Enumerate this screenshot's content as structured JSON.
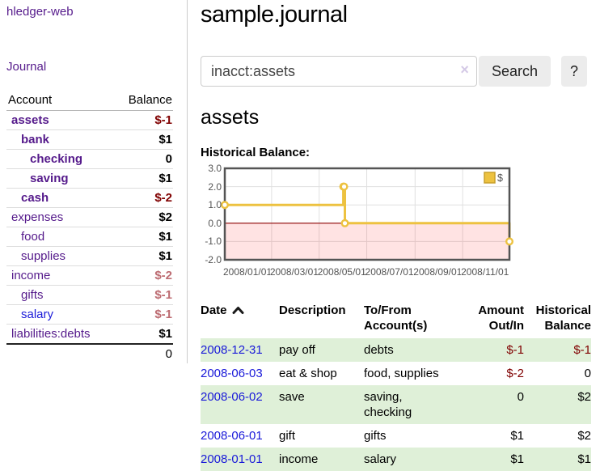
{
  "app": {
    "title": "hledger-web",
    "nav_journal": "Journal"
  },
  "sidebar": {
    "account_header": "Account",
    "balance_header": "Balance",
    "rows": [
      {
        "account": "assets",
        "balance": "$-1"
      },
      {
        "account": "bank",
        "balance": "$1"
      },
      {
        "account": "checking",
        "balance": "0"
      },
      {
        "account": "saving",
        "balance": "$1"
      },
      {
        "account": "cash",
        "balance": "$-2"
      },
      {
        "account": "expenses",
        "balance": "$2"
      },
      {
        "account": "food",
        "balance": "$1"
      },
      {
        "account": "supplies",
        "balance": "$1"
      },
      {
        "account": "income",
        "balance": "$-2"
      },
      {
        "account": "gifts",
        "balance": "$-1"
      },
      {
        "account": "salary",
        "balance": "$-1"
      },
      {
        "account": "liabilities:debts",
        "balance": "$1"
      }
    ],
    "total": "0"
  },
  "header": {
    "title": "sample.journal"
  },
  "search": {
    "value": "inacct:assets",
    "clear_icon": "×",
    "button": "Search",
    "help_button": "?"
  },
  "main": {
    "heading": "assets",
    "chart_label": "Historical Balance:"
  },
  "chart_data": {
    "type": "line",
    "step": true,
    "title": "Historical Balance:",
    "legend": "$",
    "xlim": [
      "2008-01-01",
      "2008-12-31"
    ],
    "ylim": [
      -2,
      3
    ],
    "yticks": [
      "3.0",
      "2.0",
      "1.0",
      "0.0",
      "-1.0",
      "-2.0"
    ],
    "xticks": [
      "2008/01/01",
      "2008/03/01",
      "2008/05/01",
      "2008/07/01",
      "2008/09/01",
      "2008/11/01"
    ],
    "series": [
      {
        "name": "$",
        "color": "#edc240",
        "points": [
          {
            "x": "2008-01-01",
            "y": 1
          },
          {
            "x": "2008-06-01",
            "y": 2
          },
          {
            "x": "2008-06-02",
            "y": 2
          },
          {
            "x": "2008-06-03",
            "y": 0
          },
          {
            "x": "2008-12-31",
            "y": -1
          }
        ]
      }
    ],
    "colors": {
      "negative_region": "rgba(255,0,0,0.11)",
      "zero_line": "#8b0000",
      "grid": "#e0e0e0",
      "border": "#545454",
      "tick_text": "#545454"
    }
  },
  "register": {
    "headers": {
      "date": "Date",
      "description": "Description",
      "accounts": "To/From Account(s)",
      "amount": "Amount Out/In",
      "balance": "Historical Balance"
    },
    "rows": [
      {
        "date": "2008-12-31",
        "description": "pay off",
        "accounts": "debts",
        "amount": "$-1",
        "balance": "$-1"
      },
      {
        "date": "2008-06-03",
        "description": "eat & shop",
        "accounts": "food, supplies",
        "amount": "$-2",
        "balance": "0"
      },
      {
        "date": "2008-06-02",
        "description": "save",
        "accounts": "saving,\nchecking",
        "amount": "0",
        "balance": "$2"
      },
      {
        "date": "2008-06-01",
        "description": "gift",
        "accounts": "gifts",
        "amount": "$1",
        "balance": "$2"
      },
      {
        "date": "2008-01-01",
        "description": "income",
        "accounts": "salary",
        "amount": "$1",
        "balance": "$1"
      }
    ]
  }
}
